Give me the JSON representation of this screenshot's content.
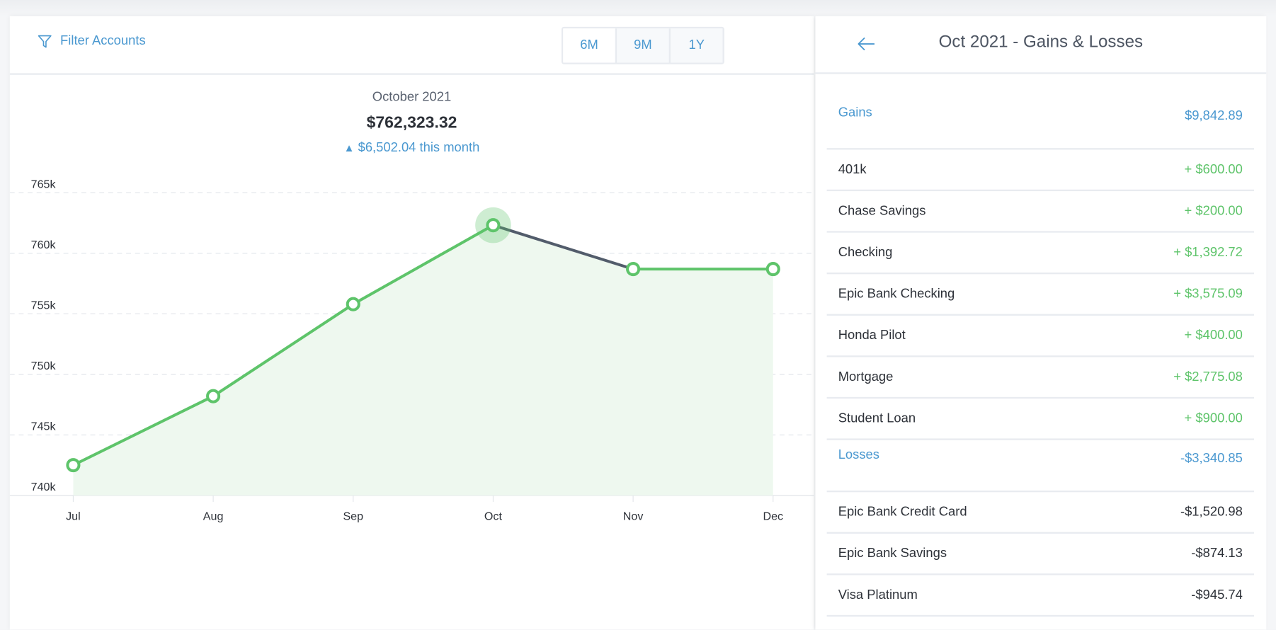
{
  "toolbar": {
    "filter_label": "Filter Accounts",
    "ranges": [
      "6M",
      "9M",
      "1Y"
    ],
    "selected_range": "6M"
  },
  "summary": {
    "month": "October 2021",
    "total": "$762,323.32",
    "change": "$6,502.04 this month",
    "change_icon": "triangle-up-icon"
  },
  "colors": {
    "accent": "#4a98d0",
    "line": "#5ec46a",
    "fill": "#eef8ef",
    "future_line": "#525c6b"
  },
  "chart_data": {
    "type": "line",
    "title": "",
    "xlabel": "",
    "ylabel": "",
    "categories": [
      "Jul",
      "Aug",
      "Sep",
      "Oct",
      "Nov",
      "Dec"
    ],
    "values": [
      742500,
      748200,
      755800,
      762323.32,
      758700,
      758700
    ],
    "highlight": "Oct",
    "ylim": [
      740000,
      765000
    ],
    "yticks": [
      740000,
      745000,
      750000,
      755000,
      760000,
      765000
    ],
    "ytick_labels": [
      "740k",
      "745k",
      "750k",
      "755k",
      "760k",
      "765k"
    ],
    "grid": true
  },
  "panel": {
    "title": "Oct 2021 - Gains & Losses",
    "gains": {
      "label": "Gains",
      "total": "$9,842.89",
      "items": [
        {
          "name": "401k",
          "amount": "+ $600.00"
        },
        {
          "name": "Chase Savings",
          "amount": "+ $200.00"
        },
        {
          "name": "Checking",
          "amount": "+ $1,392.72"
        },
        {
          "name": "Epic Bank Checking",
          "amount": "+ $3,575.09"
        },
        {
          "name": "Honda Pilot",
          "amount": "+ $400.00"
        },
        {
          "name": "Mortgage",
          "amount": "+ $2,775.08"
        },
        {
          "name": "Student Loan",
          "amount": "+ $900.00"
        }
      ]
    },
    "losses": {
      "label": "Losses",
      "total": "-$3,340.85",
      "items": [
        {
          "name": "Epic Bank Credit Card",
          "amount": "-$1,520.98"
        },
        {
          "name": "Epic Bank Savings",
          "amount": "-$874.13"
        },
        {
          "name": "Visa Platinum",
          "amount": "-$945.74"
        }
      ]
    }
  }
}
